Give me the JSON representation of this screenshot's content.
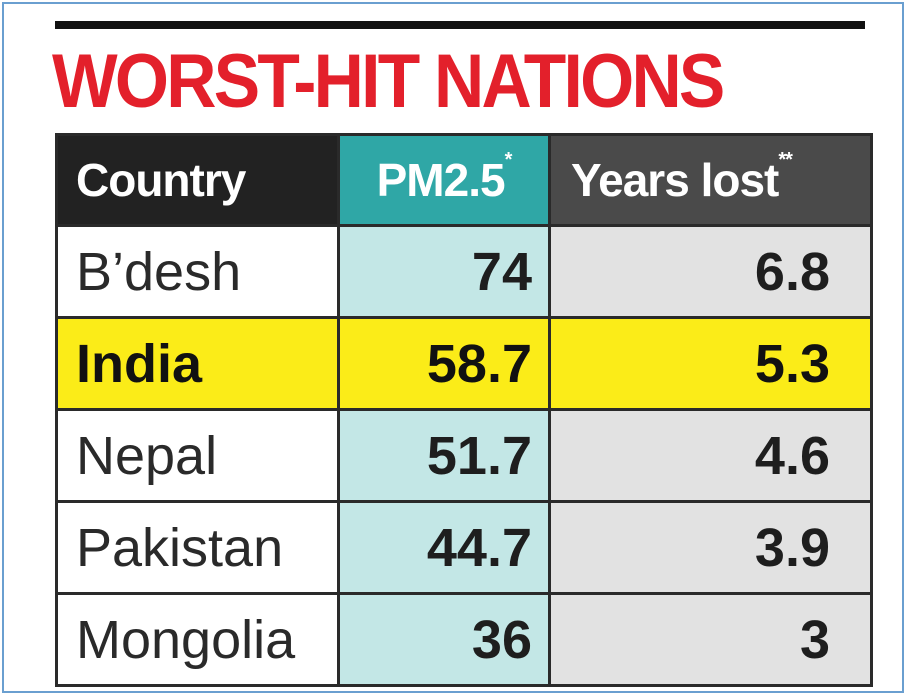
{
  "chart_data": {
    "type": "table",
    "title": "WORST-HIT NATIONS",
    "columns": [
      {
        "label": "Country",
        "marker": ""
      },
      {
        "label": "PM2.5",
        "marker": "*"
      },
      {
        "label": "Years lost",
        "marker": "**"
      }
    ],
    "rows": [
      {
        "country": "B’desh",
        "pm25": "74",
        "years_lost": "6.8",
        "highlight": false
      },
      {
        "country": "India",
        "pm25": "58.7",
        "years_lost": "5.3",
        "highlight": true
      },
      {
        "country": "Nepal",
        "pm25": "51.7",
        "years_lost": "4.6",
        "highlight": false
      },
      {
        "country": "Pakistan",
        "pm25": "44.7",
        "years_lost": "3.9",
        "highlight": false
      },
      {
        "country": "Mongolia",
        "pm25": "36",
        "years_lost": "3",
        "highlight": false
      }
    ],
    "colors": {
      "title": "#e3202b",
      "header_country": "#222222",
      "header_pm25": "#2fa7a6",
      "header_years": "#4a4a4a",
      "pm25_cells": "#c3e7e6",
      "years_cells": "#e2e2e2",
      "highlight_row": "#fbec18"
    }
  }
}
